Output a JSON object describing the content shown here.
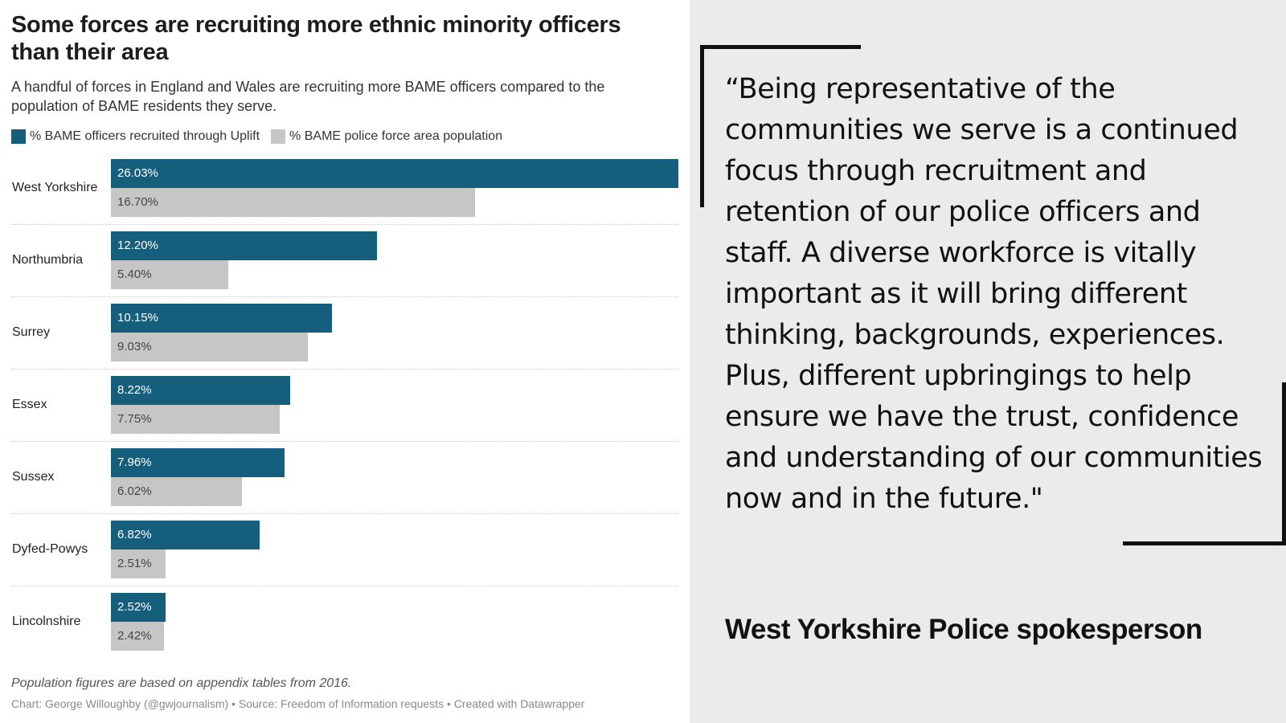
{
  "chart_data": {
    "type": "bar",
    "orientation": "horizontal",
    "title": "Some forces are recruiting more ethnic minority officers than their area",
    "subtitle": "A handful of forces in England and Wales are recruiting more BAME officers compared to the population of BAME residents they serve.",
    "categories": [
      "West Yorkshire",
      "Northumbria",
      "Surrey",
      "Essex",
      "Sussex",
      "Dyfed-Powys",
      "Lincolnshire"
    ],
    "series": [
      {
        "name": "% BAME officers recruited through Uplift",
        "color": "#155f7c",
        "values": [
          26.03,
          12.2,
          10.15,
          8.22,
          7.96,
          6.82,
          2.52
        ],
        "labels": [
          "26.03%",
          "12.20%",
          "10.15%",
          "8.22%",
          "7.96%",
          "6.82%",
          "2.52%"
        ]
      },
      {
        "name": "% BAME police force area population",
        "color": "#c6c6c6",
        "values": [
          16.7,
          5.4,
          9.03,
          7.75,
          6.02,
          2.51,
          2.42
        ],
        "labels": [
          "16.70%",
          "5.40%",
          "9.03%",
          "7.75%",
          "6.02%",
          "2.51%",
          "2.42%"
        ]
      }
    ],
    "xlim": [
      0,
      26.03
    ],
    "legend_position": "top-left",
    "grid": false,
    "note": "Population figures are based on appendix tables from 2016.",
    "credit": "Chart: George Willoughby (@gwjournalism) • Source: Freedom of Information requests • Created with Datawrapper"
  },
  "quote": {
    "text": "“Being representative of the communities we serve is a continued focus through recruitment and retention of our police officers and staff. A diverse workforce is vitally important as it will bring different thinking, backgrounds, experiences. Plus, different upbringings to help ensure we have the trust, confidence and understanding of our communities now and in the future.\"",
    "attribution": "West Yorkshire Police spokesperson"
  }
}
